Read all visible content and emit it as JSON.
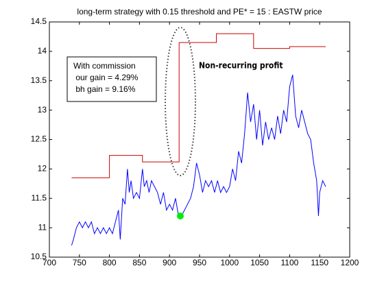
{
  "chart_data": {
    "type": "line",
    "title": "long-term strategy with 0.15 threshold and PE* = 15 : EASTW price",
    "xlim": [
      700,
      1200
    ],
    "xticks": [
      700,
      750,
      800,
      850,
      900,
      950,
      1000,
      1050,
      1100,
      1150,
      1200
    ],
    "ylim": [
      10.5,
      14.5
    ],
    "yticks": [
      10.5,
      11,
      11.5,
      12,
      12.5,
      13,
      13.5,
      14,
      14.5
    ],
    "series": [
      {
        "color": "#0000ff",
        "x": [
          737,
          740,
          745,
          750,
          755,
          760,
          765,
          770,
          775,
          780,
          785,
          790,
          795,
          800,
          805,
          810,
          815,
          818,
          822,
          826,
          830,
          833,
          836,
          840,
          845,
          850,
          855,
          858,
          862,
          866,
          870,
          875,
          880,
          885,
          890,
          895,
          900,
          905,
          910,
          915,
          920,
          925,
          930,
          935,
          940,
          945,
          950,
          955,
          960,
          965,
          970,
          975,
          980,
          985,
          990,
          995,
          1000,
          1005,
          1010,
          1015,
          1020,
          1025,
          1030,
          1035,
          1040,
          1045,
          1050,
          1055,
          1060,
          1065,
          1070,
          1075,
          1080,
          1085,
          1090,
          1095,
          1100,
          1105,
          1110,
          1115,
          1120,
          1125,
          1130,
          1135,
          1140,
          1145,
          1148,
          1150,
          1155,
          1160
        ],
        "values": [
          10.7,
          10.8,
          11.0,
          11.1,
          11.0,
          11.1,
          11.0,
          11.1,
          10.9,
          11.0,
          10.9,
          11.0,
          10.9,
          11.0,
          10.9,
          11.1,
          11.3,
          10.8,
          11.5,
          11.4,
          12.0,
          11.6,
          11.8,
          11.5,
          11.6,
          11.5,
          12.0,
          11.7,
          11.8,
          11.6,
          11.8,
          11.7,
          11.6,
          11.4,
          11.6,
          11.3,
          11.4,
          11.3,
          11.5,
          11.2,
          11.2,
          11.3,
          11.4,
          11.5,
          11.7,
          12.1,
          11.9,
          11.6,
          11.8,
          11.7,
          11.8,
          11.6,
          11.8,
          11.6,
          11.7,
          11.6,
          11.7,
          12.0,
          11.8,
          12.3,
          12.1,
          12.6,
          13.3,
          12.8,
          13.1,
          12.5,
          13.0,
          12.4,
          12.8,
          12.5,
          12.7,
          12.5,
          12.9,
          12.6,
          13.0,
          12.8,
          13.4,
          13.6,
          12.9,
          12.7,
          13.0,
          12.8,
          12.6,
          12.5,
          12.1,
          11.8,
          11.2,
          11.6,
          11.8,
          11.7
        ]
      },
      {
        "color": "#cc0000",
        "x": [
          737,
          800,
          800,
          855,
          855,
          916,
          916,
          978,
          978,
          1040,
          1040,
          1100,
          1100,
          1160
        ],
        "values": [
          11.85,
          11.85,
          12.23,
          12.23,
          12.12,
          12.12,
          14.15,
          14.15,
          14.3,
          14.3,
          14.05,
          14.05,
          14.08,
          14.08
        ]
      }
    ],
    "points": [
      {
        "color": "#00ee00",
        "x": 918,
        "y": 11.2
      }
    ],
    "box_lines": [
      "With commission",
      " our gain = 4.29%",
      " bh gain = 9.16%"
    ],
    "annotation": "Non-recurring profit"
  }
}
